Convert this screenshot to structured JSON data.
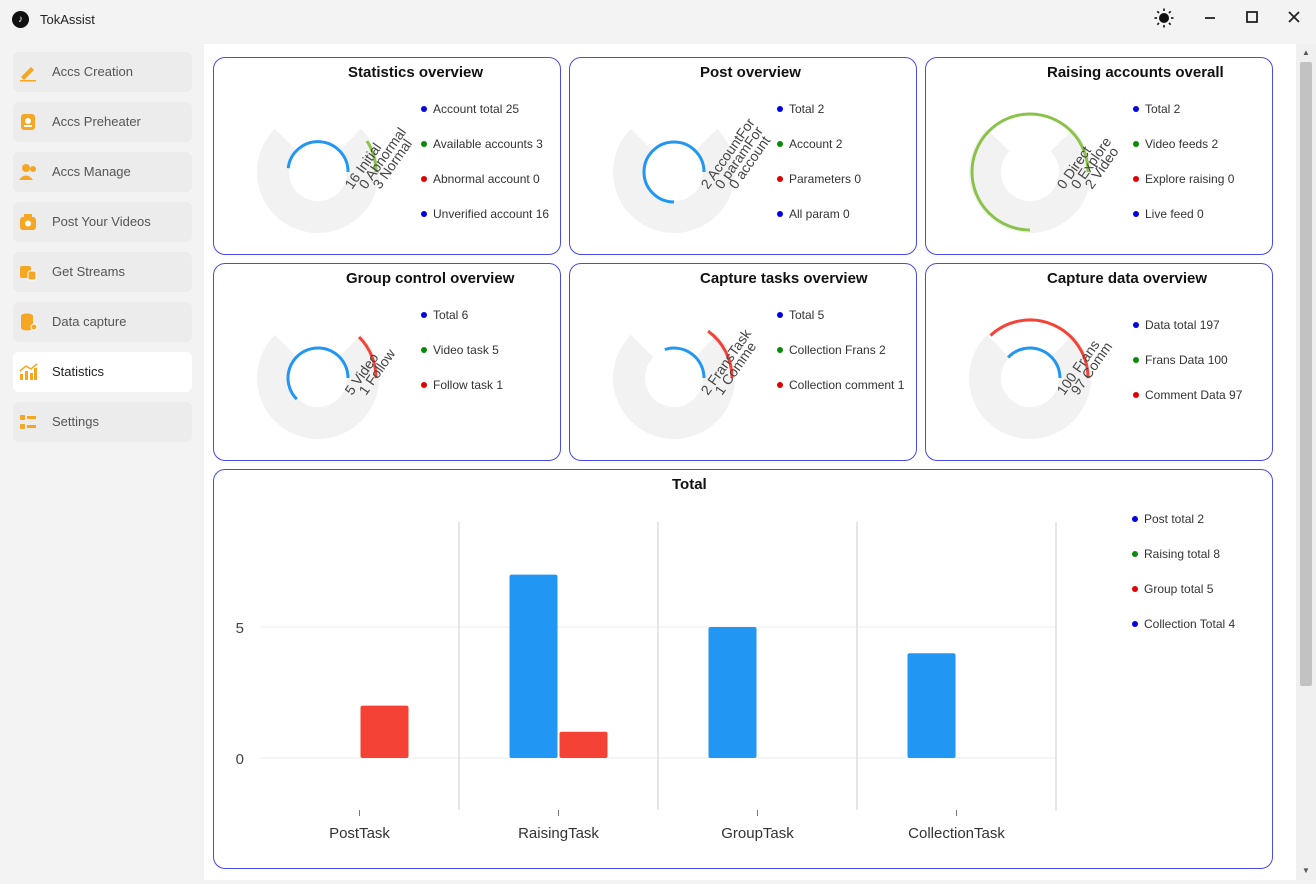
{
  "app": {
    "title": "TokAssist"
  },
  "window": {
    "theme_icon": "sun-icon",
    "minimize_icon": "minimize-icon",
    "maximize_icon": "maximize-icon",
    "close_icon": "close-icon"
  },
  "sidebar": {
    "items": [
      {
        "label": "Accs Creation",
        "icon": "pencil-icon",
        "active": false
      },
      {
        "label": "Accs Preheater",
        "icon": "preheat-icon",
        "active": false
      },
      {
        "label": "Accs Manage",
        "icon": "users-icon",
        "active": false
      },
      {
        "label": "Post Your Videos",
        "icon": "camera-icon",
        "active": false
      },
      {
        "label": "Get Streams",
        "icon": "stream-icon",
        "active": false
      },
      {
        "label": "Data capture",
        "icon": "database-icon",
        "active": false
      },
      {
        "label": "Statistics",
        "icon": "bar-chart-icon",
        "active": true
      },
      {
        "label": "Settings",
        "icon": "settings-list-icon",
        "active": false
      }
    ]
  },
  "colors": {
    "blue": "#2196f3",
    "green": "#8bc34a",
    "red": "#f44336",
    "track": "#f2f2f2",
    "legend_blue": "#0000e0",
    "legend_green": "#0a8a0a",
    "legend_red": "#e00000",
    "border": "#4a4ae6"
  },
  "cards": [
    {
      "title": "Statistics overview",
      "legend": [
        {
          "text": "Account total 25",
          "color": "blue"
        },
        {
          "text": "Available accounts 3",
          "color": "green"
        },
        {
          "text": "Abnormal account 0",
          "color": "red"
        },
        {
          "text": "Unverified account 16",
          "color": "blue"
        }
      ],
      "rings": [
        {
          "value": 16,
          "max": 25,
          "color": "blue"
        },
        {
          "value": 3,
          "max": 25,
          "color": "green"
        }
      ],
      "ring_labels": [
        "16 Initial",
        "0 Abnormal",
        "3 Normal"
      ]
    },
    {
      "title": "Post overview",
      "legend": [
        {
          "text": "Total 2",
          "color": "blue"
        },
        {
          "text": "Account 2",
          "color": "green"
        },
        {
          "text": "Parameters 0",
          "color": "red"
        },
        {
          "text": "All param 0",
          "color": "blue"
        }
      ],
      "rings": [
        {
          "value": 2,
          "max": 2,
          "color": "blue"
        }
      ],
      "ring_labels": [
        "2 AccountFor",
        "0 paramFor",
        "0 account"
      ]
    },
    {
      "title": "Raising accounts overall",
      "legend": [
        {
          "text": "Total 2",
          "color": "blue"
        },
        {
          "text": "Video feeds 2",
          "color": "green"
        },
        {
          "text": "Explore raising 0",
          "color": "red"
        },
        {
          "text": "Live feed  0",
          "color": "blue"
        }
      ],
      "rings": [
        {
          "value": 2,
          "max": 2,
          "color": "green"
        }
      ],
      "ring_labels": [
        "0 Direct",
        "0 Explore",
        "2 Video"
      ]
    },
    {
      "title": "Group control overview",
      "legend": [
        {
          "text": "Total 6",
          "color": "blue"
        },
        {
          "text": "Video task 5",
          "color": "green"
        },
        {
          "text": "Follow task 1",
          "color": "red"
        }
      ],
      "rings": [
        {
          "value": 5,
          "max": 6,
          "color": "blue"
        },
        {
          "value": 1,
          "max": 6,
          "color": "red"
        }
      ],
      "ring_labels": [
        "5 Video",
        "1 Follow"
      ]
    },
    {
      "title": "Capture tasks overview",
      "legend": [
        {
          "text": "Total 5",
          "color": "blue"
        },
        {
          "text": "Collection Frans 2",
          "color": "green"
        },
        {
          "text": "Collection comment 1",
          "color": "red"
        }
      ],
      "rings": [
        {
          "value": 2,
          "max": 5,
          "color": "blue"
        },
        {
          "value": 1,
          "max": 5,
          "color": "red"
        }
      ],
      "ring_labels": [
        "2 FransTask",
        "1 Comme"
      ]
    },
    {
      "title": "Capture data overview",
      "legend": [
        {
          "text": "Data total 197",
          "color": "blue"
        },
        {
          "text": "Frans Data 100",
          "color": "green"
        },
        {
          "text": "Comment Data 97",
          "color": "red"
        }
      ],
      "rings": [
        {
          "value": 100,
          "max": 197,
          "color": "blue"
        },
        {
          "value": 97,
          "max": 197,
          "color": "red"
        }
      ],
      "ring_labels": [
        "100 Frans",
        "97 Comm"
      ]
    }
  ],
  "total_card": {
    "title": "Total",
    "legend": [
      {
        "text": "Post total 2",
        "color": "blue"
      },
      {
        "text": "Raising total 8",
        "color": "green"
      },
      {
        "text": "Group total 5",
        "color": "red"
      },
      {
        "text": "Collection Total 4",
        "color": "blue"
      }
    ]
  },
  "chart_data": {
    "type": "bar",
    "title": "Total",
    "categories": [
      "PostTask",
      "RaisingTask",
      "GroupTask",
      "CollectionTask"
    ],
    "series": [
      {
        "values": [
          0,
          7,
          5,
          4
        ],
        "color": "#2196f3"
      },
      {
        "values": [
          2,
          1,
          0,
          0
        ],
        "color": "#f44336"
      }
    ],
    "y_ticks": [
      0,
      5
    ],
    "ylim": [
      -2,
      9
    ],
    "grid": true
  }
}
